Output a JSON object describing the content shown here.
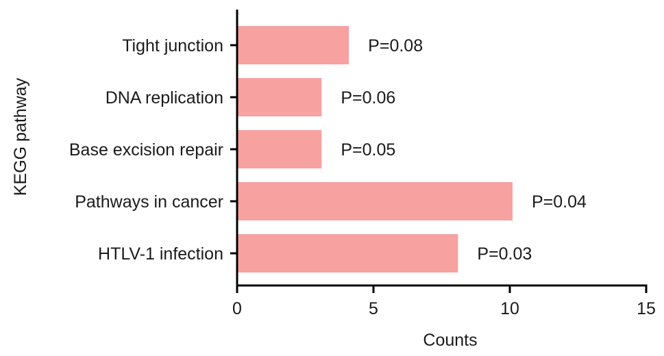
{
  "chart_data": {
    "type": "bar",
    "orientation": "horizontal",
    "categories": [
      "Tight junction",
      "DNA replication",
      "Base excision repair",
      "Pathways in cancer",
      "HTLV-1 infection"
    ],
    "values": [
      4.1,
      3.1,
      3.1,
      10.1,
      8.1
    ],
    "annotations": [
      "P=0.08",
      "P=0.06",
      "P=0.05",
      "P=0.04",
      "P=0.03"
    ],
    "xlabel": "Counts",
    "ylabel": "KEGG pathway",
    "xlim": [
      0,
      15
    ],
    "xticks": [
      0,
      5,
      10,
      15
    ],
    "grid": false,
    "bar_color": "#f7a1a1"
  }
}
